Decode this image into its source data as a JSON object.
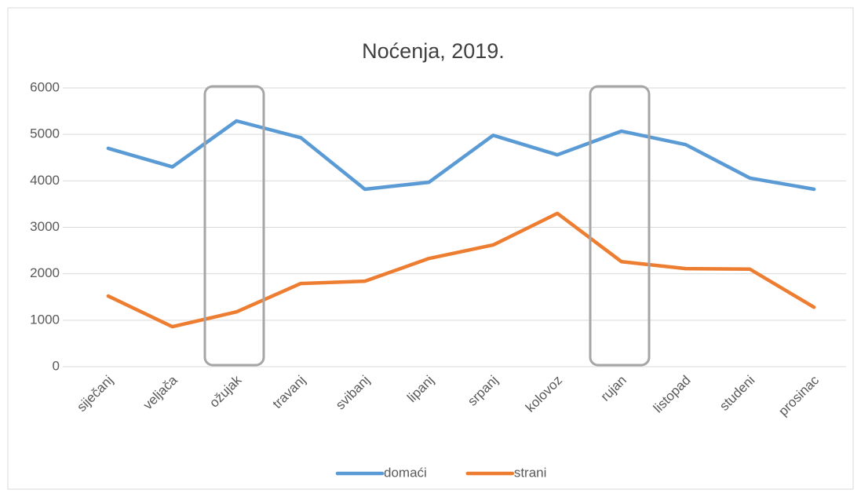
{
  "chart_data": {
    "type": "line",
    "title": "Noćenja, 2019.",
    "categories": [
      "siječanj",
      "veljača",
      "ožujak",
      "travanj",
      "svibanj",
      "lipanj",
      "srpanj",
      "kolovoz",
      "rujan",
      "listopad",
      "studeni",
      "prosinac"
    ],
    "series": [
      {
        "name": "domaći",
        "color": "#5b9bd5",
        "values": [
          4700,
          4300,
          5290,
          4930,
          3820,
          3970,
          4980,
          4560,
          5070,
          4780,
          4060,
          3820
        ]
      },
      {
        "name": "strani",
        "color": "#ed7d31",
        "values": [
          1520,
          860,
          1180,
          1790,
          1840,
          2330,
          2620,
          3300,
          2260,
          2110,
          2100,
          1280
        ]
      }
    ],
    "ylim": [
      0,
      6000
    ],
    "yticks": [
      0,
      1000,
      2000,
      3000,
      4000,
      5000,
      6000
    ],
    "grid": true,
    "legend": "bottom"
  }
}
